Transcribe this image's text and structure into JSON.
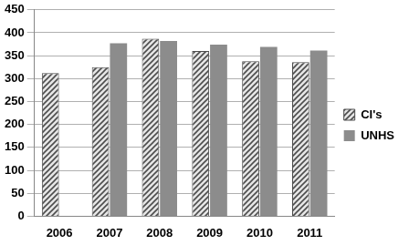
{
  "chart_data": {
    "type": "bar",
    "categories": [
      "2006",
      "2007",
      "2008",
      "2009",
      "2010",
      "2011"
    ],
    "series": [
      {
        "name": "CI's",
        "color": "#4d4d4d",
        "values": [
          312,
          325,
          387,
          360,
          338,
          336
        ]
      },
      {
        "name": "UNHS",
        "color": "#8c8c8c",
        "values": [
          null,
          377,
          382,
          374,
          369,
          361
        ]
      }
    ],
    "ylim": [
      0,
      450
    ],
    "yticks": [
      0,
      50,
      100,
      150,
      200,
      250,
      300,
      350,
      400,
      450
    ],
    "grid": true,
    "legend": "right"
  }
}
